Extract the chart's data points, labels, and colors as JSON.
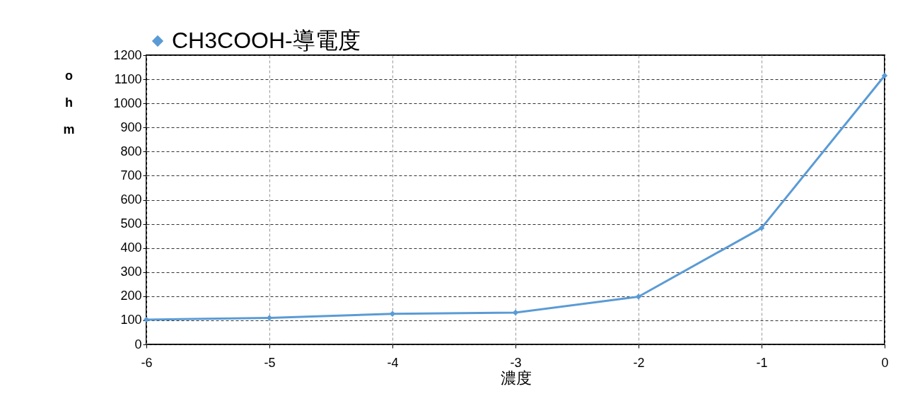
{
  "chart_data": {
    "type": "line",
    "xlabel": "濃度",
    "ylabel": "ohm",
    "x": [
      -6,
      -5,
      -4,
      -3,
      -2,
      -1,
      0
    ],
    "series": [
      {
        "name": "CH3COOH-導電度",
        "color": "#5b9bd5",
        "values": [
          103,
          110,
          127,
          132,
          198,
          483,
          1115
        ]
      }
    ],
    "xlim": [
      -6,
      0
    ],
    "xticks": [
      -6,
      -5,
      -4,
      -3,
      -2,
      -1,
      0
    ],
    "ylim": [
      0,
      1200
    ],
    "yticks": [
      0,
      100,
      200,
      300,
      400,
      500,
      600,
      700,
      800,
      900,
      1000,
      1100,
      1200
    ],
    "grid": true,
    "legend": "top",
    "marker": "diamond",
    "line_style": "solid"
  }
}
